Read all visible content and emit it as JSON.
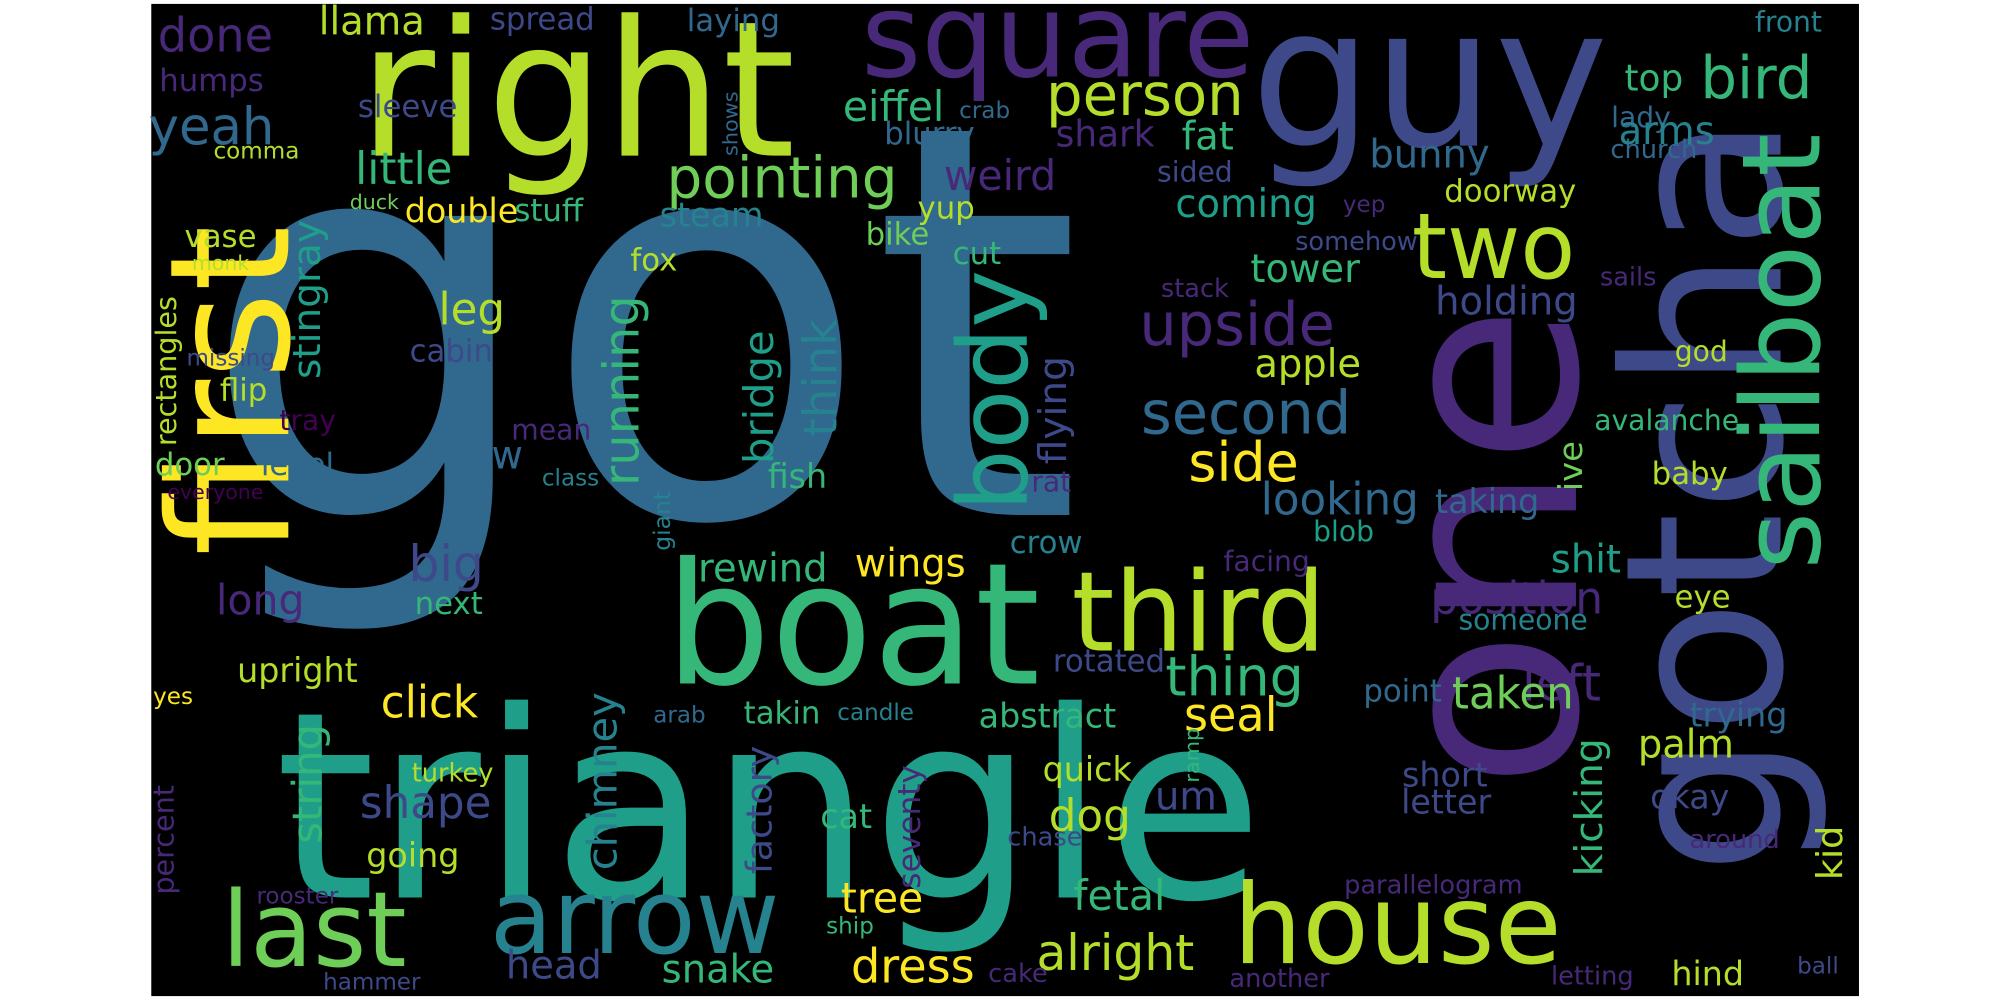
{
  "words": [
    "got",
    "triangle",
    "boat",
    "one",
    "gotcha",
    "right",
    "guy",
    "first",
    "square",
    "sailboat",
    "house",
    "arrow",
    "last",
    "third",
    "body",
    "two",
    "person",
    "bird",
    "done",
    "llama",
    "spread",
    "laying",
    "top",
    "front",
    "humps",
    "sleeve",
    "eiffel",
    "crab",
    "shows",
    "lady",
    "church",
    "yeah",
    "little",
    "pointing",
    "blurry",
    "shark",
    "fat",
    "arms",
    "bunny",
    "weird",
    "sided",
    "comma",
    "duck",
    "double",
    "stuff",
    "steam",
    "yup",
    "coming",
    "yep",
    "doorway",
    "vase",
    "stingray",
    "bike",
    "somehow",
    "monk",
    "fox",
    "cut",
    "tower",
    "rectangles",
    "leg",
    "running",
    "bridge",
    "think",
    "upside",
    "stack",
    "holding",
    "sails",
    "missing",
    "cabin",
    "flying",
    "apple",
    "god",
    "flip",
    "second",
    "tray",
    "mean",
    "avalanche",
    "door",
    "level",
    "now",
    "side",
    "class",
    "fish",
    "ive",
    "baby",
    "everyone",
    "rat",
    "giant",
    "looking",
    "taking",
    "blob",
    "crow",
    "big",
    "rewind",
    "wings",
    "shit",
    "facing",
    "long",
    "position",
    "next",
    "eye",
    "someone",
    "thing",
    "upright",
    "rotated",
    "left",
    "point",
    "taken",
    "click",
    "seal",
    "yes",
    "arab",
    "takin",
    "candle",
    "abstract",
    "trying",
    "string",
    "chimney",
    "kicking",
    "ramp",
    "palm",
    "turkey",
    "quick",
    "short",
    "percent",
    "shape",
    "um",
    "factory",
    "letter",
    "okay",
    "dog",
    "cat",
    "seventy",
    "kid",
    "around",
    "chase",
    "going",
    "tree",
    "fetal",
    "rooster",
    "parallelogram",
    "ship",
    "alright",
    "dress",
    "head",
    "snake",
    "cake",
    "another",
    "hammer",
    "letting",
    "hind",
    "ball"
  ]
}
